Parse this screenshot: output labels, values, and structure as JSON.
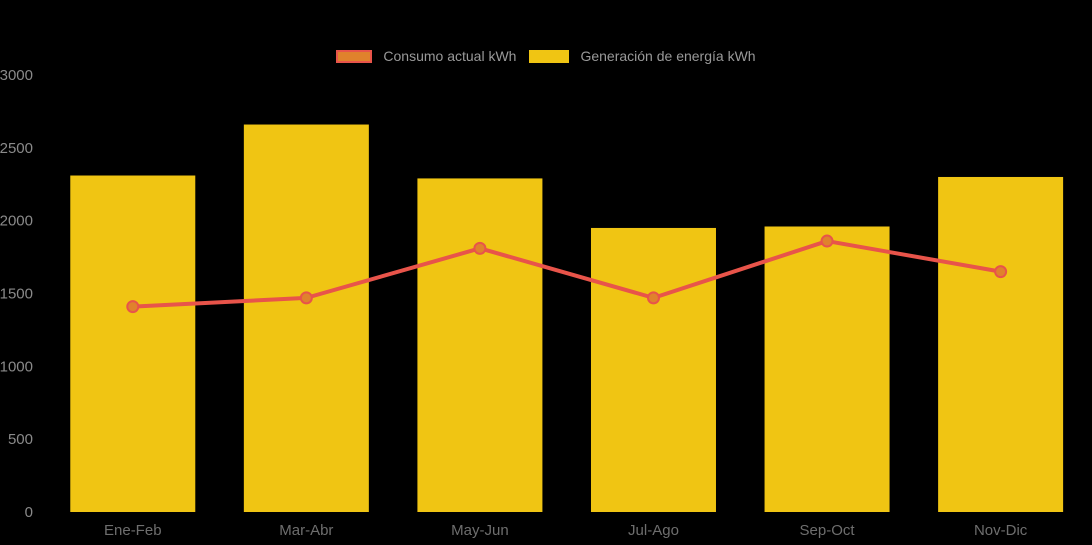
{
  "colors": {
    "background": "#000000",
    "bar": "#f0c513",
    "line": "#e8544a",
    "marker_fill": "#e0822c",
    "legend_text": "#999999",
    "y_axis_label": "#8a8a8a",
    "x_axis_label": "#6e6e6e"
  },
  "chart_data": {
    "type": "bar",
    "subtype": "bar-line-combo",
    "title": "",
    "categories": [
      "Ene-Feb",
      "Mar-Abr",
      "May-Jun",
      "Jul-Ago",
      "Sep-Oct",
      "Nov-Dic"
    ],
    "series": [
      {
        "name": "Consumo actual kWh",
        "type": "line",
        "color": "#e8544a",
        "marker_fill": "#e0822c",
        "values": [
          1410,
          1470,
          1810,
          1470,
          1860,
          1650
        ]
      },
      {
        "name": "Generación de energía kWh",
        "type": "bar",
        "color": "#f0c513",
        "values": [
          2310,
          2660,
          2290,
          1950,
          1960,
          2300
        ]
      }
    ],
    "xlabel": "",
    "ylabel": "",
    "ylim": [
      0,
      3000
    ],
    "yticks": [
      0,
      500,
      1000,
      1500,
      2000,
      2500,
      3000
    ],
    "grid": false,
    "legend_position": "top-center"
  }
}
